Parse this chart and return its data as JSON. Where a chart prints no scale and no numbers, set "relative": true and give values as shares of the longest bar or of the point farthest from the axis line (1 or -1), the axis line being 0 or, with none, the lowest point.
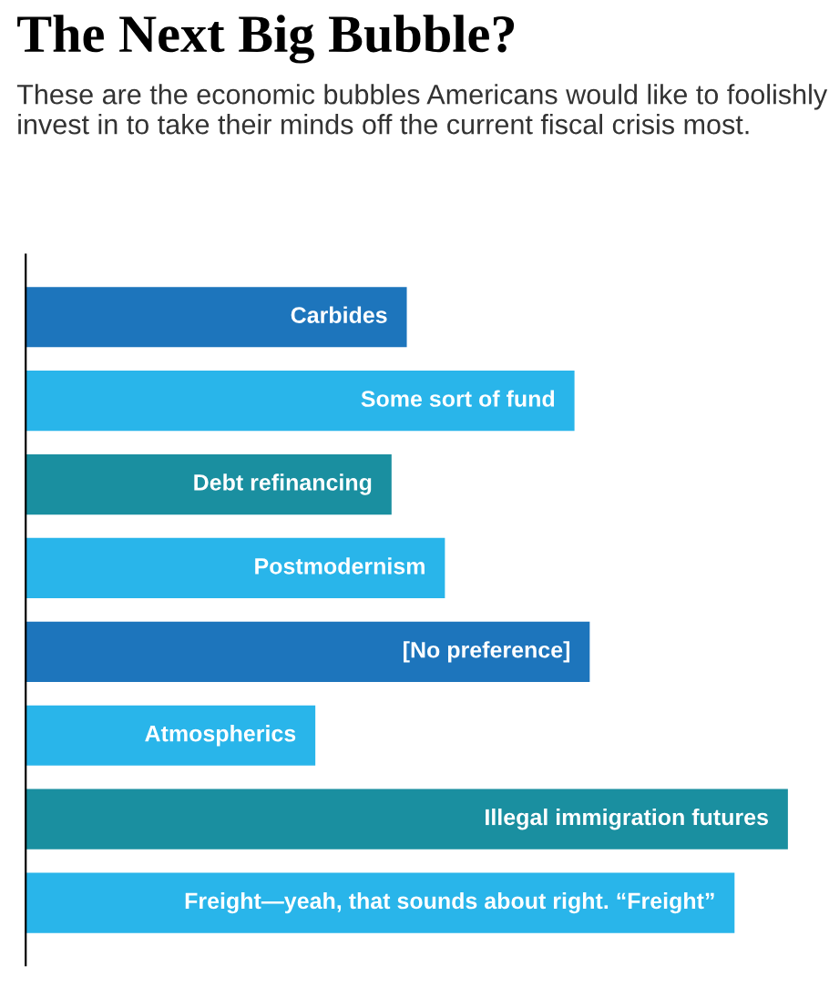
{
  "chart_data": {
    "type": "bar",
    "orientation": "horizontal",
    "relative": true,
    "title": "The Next Big Bubble?",
    "subtitle": "These are the economic bubbles Americans would like to foolishly invest in to take their minds off the current fiscal crisis most.",
    "categories": [
      "Carbides",
      "Some sort of fund",
      "Debt refinancing",
      "Postmodernism",
      "[No preference]",
      "Atmospherics",
      "Illegal immigration futures",
      "Freight—yeah, that sounds about right. “Freight”"
    ],
    "values": [
      0.5,
      0.72,
      0.48,
      0.55,
      0.74,
      0.38,
      1.0,
      0.93
    ],
    "colors": [
      "#1d75bc",
      "#29b5ea",
      "#1a8fa0",
      "#29b5ea",
      "#1d75bc",
      "#29b5ea",
      "#1a8fa0",
      "#29b5ea"
    ],
    "grid": false,
    "legend": false
  }
}
